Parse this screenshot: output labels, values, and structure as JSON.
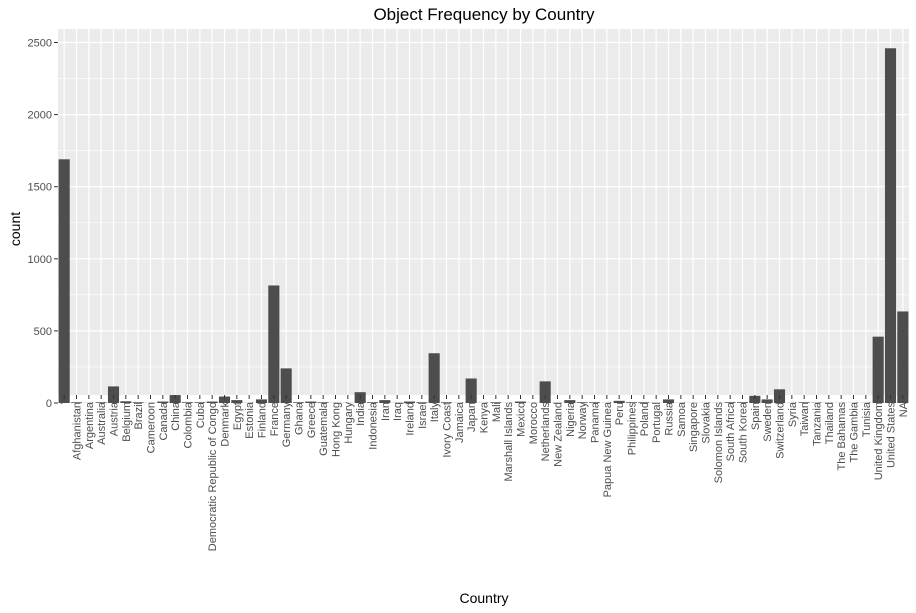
{
  "chart_data": {
    "type": "bar",
    "title": "Object Frequency by Country",
    "xlabel": "Country",
    "ylabel": "count",
    "ylim": [
      0,
      2600
    ],
    "yticks": [
      0,
      500,
      1000,
      1500,
      2000,
      2500
    ],
    "grid": true,
    "colors": {
      "bar": "#4d4d4d",
      "panel": "#ebebeb",
      "grid": "#ffffff"
    },
    "categories": [
      "'",
      "Afghanistan",
      "Argentina",
      "Australia",
      "Austria",
      "Belgium",
      "Brazil",
      "Cameroon",
      "Canada",
      "China",
      "Colombia",
      "Cuba",
      "Democratic Republic of Congo",
      "Denmark",
      "Egypt",
      "Estonia",
      "Finland",
      "France",
      "Germany",
      "Ghana",
      "Greece",
      "Guatemala",
      "Hong Kong",
      "Hungary",
      "India",
      "Indonesia",
      "Iran",
      "Iraq",
      "Ireland",
      "Israel",
      "Italy",
      "Ivory Coast",
      "Jamaica",
      "Japan",
      "Kenya",
      "Mali",
      "Marshall Islands",
      "Mexico",
      "Morocco",
      "Netherlands",
      "New Zealand",
      "Nigeria",
      "Norway",
      "Panama",
      "Papua New Guinea",
      "Peru",
      "Philippines",
      "Poland",
      "Portugal",
      "Russia",
      "Samoa",
      "Singapore",
      "Slovakia",
      "Solomon Islands",
      "South Africa",
      "South Korea",
      "Spain",
      "Sweden",
      "Switzerland",
      "Syria",
      "Taiwan",
      "Tanzania",
      "Thailand",
      "The Bahamas",
      "The Gambia",
      "Tunisia",
      "United Kingdom",
      "United States",
      "NA"
    ],
    "values": [
      1690,
      5,
      1,
      5,
      115,
      12,
      5,
      1,
      10,
      55,
      5,
      5,
      10,
      45,
      20,
      1,
      25,
      815,
      240,
      5,
      10,
      5,
      1,
      1,
      75,
      5,
      20,
      1,
      10,
      5,
      345,
      5,
      1,
      170,
      1,
      5,
      1,
      10,
      1,
      150,
      1,
      20,
      5,
      5,
      1,
      15,
      5,
      5,
      1,
      25,
      1,
      1,
      1,
      1,
      5,
      5,
      50,
      25,
      95,
      1,
      5,
      2,
      1,
      1,
      1,
      1,
      460,
      2460,
      635
    ]
  }
}
